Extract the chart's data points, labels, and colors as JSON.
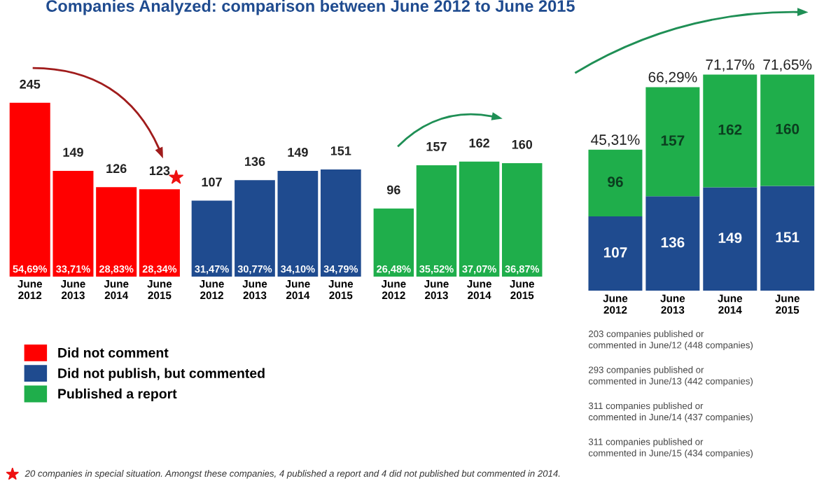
{
  "chart_data": [
    {
      "type": "bar",
      "title": "Companies Analyzed: comparison between June 2012 to June 2015",
      "categories": [
        "June\n2012",
        "June\n2013",
        "June\n2014",
        "June\n2015"
      ],
      "series": [
        {
          "name": "Did not comment",
          "color": "#ff0000",
          "values": [
            245,
            149,
            126,
            123
          ]
        }
      ],
      "tick_labels": false,
      "data_labels": true,
      "legend": "bottom left",
      "annotations": [
        {
          "text": "54,69%",
          "x": "June\n2012",
          "y": 0
        },
        {
          "text": "33,71%",
          "x": "June\n2013",
          "y": 0
        },
        {
          "text": "28,83%",
          "x": "June\n2014",
          "y": 0
        },
        {
          "text": "28,34%",
          "x": "June\n2015",
          "y": 0
        },
        "20 companies in special situation. Amongst these companies, 4 published a report and 4 did not published but commented in 2014."
      ]
    },
    {
      "type": "bar",
      "categories": [
        "June\n2012",
        "June\n2013",
        "June\n2014",
        "June\n2015"
      ],
      "series": [
        {
          "name": "Did not publish, but commented",
          "color": "#1f4b8f",
          "values": [
            107,
            136,
            149,
            151
          ]
        }
      ],
      "tick_labels": false,
      "data_labels": true,
      "legend": "bottom left",
      "annotations": [
        {
          "text": "31,47%",
          "x": "June\n2012",
          "y": 0
        },
        {
          "text": "30,77%",
          "x": "June\n2013",
          "y": 0
        },
        {
          "text": "34,10%",
          "x": "June\n2014",
          "y": 0
        },
        {
          "text": "34,79%",
          "x": "June\n2015",
          "y": 0
        }
      ]
    },
    {
      "type": "bar",
      "categories": [
        "June\n2012",
        "June\n2013",
        "June\n2014",
        "June\n2015"
      ],
      "series": [
        {
          "name": "Published a report",
          "color": "#1fae4b",
          "values": [
            96,
            157,
            162,
            160
          ]
        }
      ],
      "tick_labels": false,
      "data_labels": true,
      "legend": "bottom left",
      "annotations": [
        {
          "text": "26,48%",
          "x": "June\n2012",
          "y": 0
        },
        {
          "text": "35,52%",
          "x": "June\n2013",
          "y": 0
        },
        {
          "text": "37,07%",
          "x": "June\n2014",
          "y": 0
        },
        {
          "text": "36,87%",
          "x": "June\n2015",
          "y": 0
        }
      ]
    },
    {
      "type": "bar",
      "stacked": true,
      "categories": [
        "June\n2012",
        "June\n2013",
        "June\n2014",
        "June\n2015"
      ],
      "series": [
        {
          "color": "#1f4b8f",
          "values": [
            107,
            136,
            149,
            151
          ]
        },
        {
          "color": "#1fae4b",
          "values": [
            96,
            157,
            162,
            160
          ]
        }
      ],
      "tick_labels": false,
      "data_labels": true,
      "annotations": [
        {
          "text": "45,31%",
          "x": "June\n2012",
          "y": 203
        },
        {
          "text": "66,29%",
          "x": "June\n2013",
          "y": 293
        },
        {
          "text": "71,17%",
          "x": "June\n2014",
          "y": 311
        },
        {
          "text": "71,65%",
          "x": "June\n2015",
          "y": 311
        },
        "203 companies published or\ncommented in June/12 (448 companies)",
        "293 companies published or\ncommented in June/13 (442 companies)",
        "311 companies published or\ncommented in June/14 (437 companies)",
        "311 companies published or\ncommented in June/15 (434 companies)"
      ]
    }
  ]
}
